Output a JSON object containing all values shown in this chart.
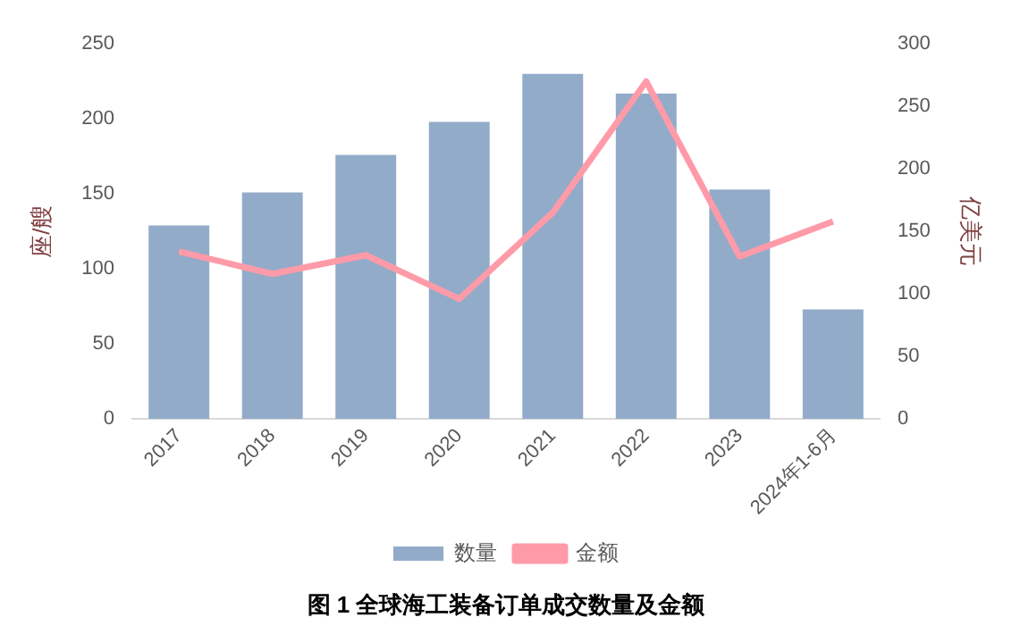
{
  "chart_data": {
    "type": "bar",
    "title": "图 1 全球海工装备订单成交数量及金额",
    "ylabel": "座/艘",
    "y2label": "亿美元",
    "categories": [
      "2017",
      "2018",
      "2019",
      "2020",
      "2021",
      "2022",
      "2023",
      "2024年1-6月"
    ],
    "series": [
      {
        "name": "数量",
        "color": "#92abc9",
        "values": [
          129,
          151,
          176,
          198,
          230,
          217,
          153,
          73
        ]
      },
      {
        "name": "金额",
        "type": "line",
        "axis": "y2",
        "color": "#ff9aa8",
        "values": [
          134,
          116,
          131,
          96,
          165,
          270,
          130,
          158
        ]
      }
    ],
    "ylim": [
      0,
      250
    ],
    "yticks": [
      0,
      50,
      100,
      150,
      200,
      250
    ],
    "y2lim": [
      0,
      300
    ],
    "y2ticks": [
      0,
      50,
      100,
      150,
      200,
      250,
      300
    ],
    "grid": false,
    "legend": "bottom",
    "marker": "none",
    "line_style": "solid"
  }
}
